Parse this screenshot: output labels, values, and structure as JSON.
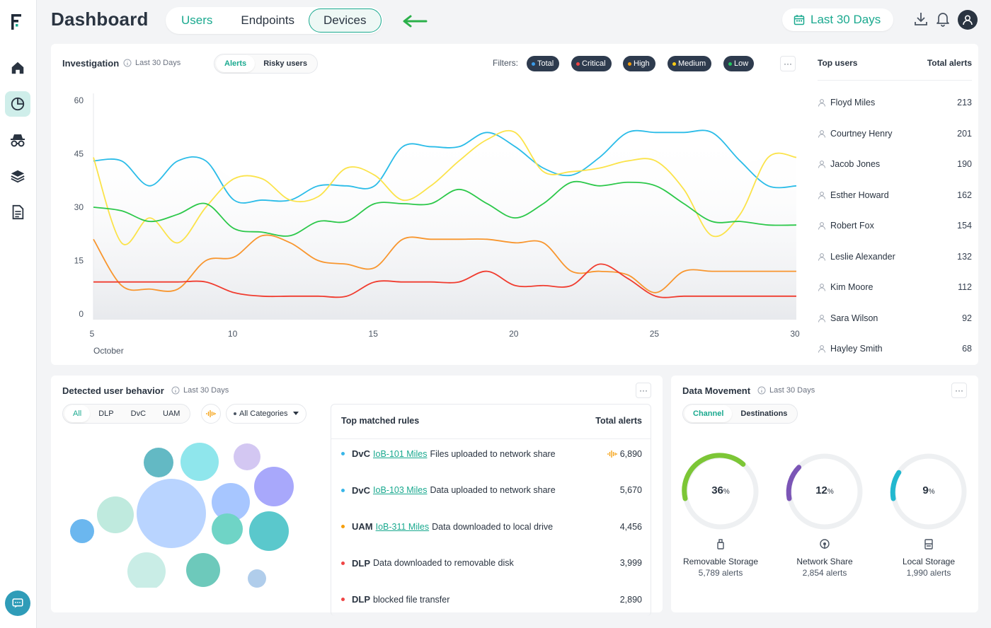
{
  "app": {
    "title": "Dashboard"
  },
  "header": {
    "tabs": [
      {
        "label": "Users"
      },
      {
        "label": "Endpoints"
      },
      {
        "label": "Devices"
      }
    ],
    "date_range": "Last 30 Days"
  },
  "sidebar": {
    "items": [
      {
        "icon": "home-icon"
      },
      {
        "icon": "pie-chart-icon",
        "active": true
      },
      {
        "icon": "spy-icon"
      },
      {
        "icon": "layers-icon"
      },
      {
        "icon": "document-icon"
      }
    ]
  },
  "investigation": {
    "title": "Investigation",
    "subtitle": "Last 30 Days",
    "tabs": [
      "Alerts",
      "Risky users"
    ],
    "filters_label": "Filters:",
    "filters": [
      {
        "label": "Total",
        "color": "#3b9be8"
      },
      {
        "label": "Critical",
        "color": "#ef4444"
      },
      {
        "label": "High",
        "color": "#f59e0b"
      },
      {
        "label": "Medium",
        "color": "#facc15"
      },
      {
        "label": "Low",
        "color": "#22c55e"
      }
    ],
    "more": "···",
    "x_caption": "October"
  },
  "chart_data": {
    "type": "line",
    "xlim": [
      5,
      30
    ],
    "ylim": [
      0,
      60
    ],
    "x_ticks": [
      5,
      10,
      15,
      20,
      25,
      30
    ],
    "y_ticks": [
      0,
      15,
      30,
      45,
      60
    ],
    "xlabel": "October",
    "series": [
      {
        "color": "#2bbce8",
        "x": [
          5,
          6,
          7,
          8,
          9,
          10,
          11,
          12,
          13,
          14,
          15,
          16,
          17,
          18,
          19,
          20,
          21,
          22,
          23,
          24,
          25,
          26,
          27,
          28,
          29,
          30
        ],
        "y": [
          43,
          43,
          36,
          43,
          43,
          32,
          32,
          32,
          36,
          36,
          36,
          47,
          47,
          47,
          51,
          47,
          41,
          39,
          44,
          51,
          51,
          51,
          51,
          43,
          36,
          36
        ]
      },
      {
        "color": "#fbe34a",
        "x": [
          5,
          6,
          7,
          8,
          9,
          10,
          11,
          12,
          13,
          14,
          15,
          16,
          17,
          18,
          19,
          20,
          21,
          22,
          23,
          24,
          25,
          26,
          27,
          28,
          29,
          30
        ],
        "y": [
          44,
          20,
          27,
          20,
          30,
          38,
          38,
          32,
          33,
          41,
          39,
          32,
          36,
          43,
          49,
          51,
          40,
          40,
          41,
          43,
          43,
          35,
          22,
          28,
          44,
          44
        ]
      },
      {
        "color": "#2cc84a",
        "x": [
          5,
          6,
          7,
          8,
          9,
          10,
          11,
          12,
          13,
          14,
          15,
          16,
          17,
          18,
          19,
          20,
          21,
          22,
          23,
          24,
          25,
          26,
          27,
          28,
          29,
          30
        ],
        "y": [
          30,
          29,
          26,
          28,
          31,
          24,
          23,
          22,
          26,
          26,
          31,
          31,
          31,
          35,
          31,
          27,
          31,
          37,
          36,
          37,
          36,
          31,
          26,
          26,
          25,
          25
        ]
      },
      {
        "color": "#f8962e",
        "x": [
          5,
          6,
          7,
          8,
          9,
          10,
          11,
          12,
          13,
          14,
          15,
          16,
          17,
          18,
          19,
          20,
          21,
          22,
          23,
          24,
          25,
          26,
          27,
          28,
          29,
          30
        ],
        "y": [
          21,
          8,
          7,
          7,
          15,
          16,
          22,
          20,
          15,
          14,
          13,
          21,
          21,
          21,
          21,
          20,
          20,
          12,
          12,
          11,
          6,
          12,
          12,
          12,
          12,
          12
        ]
      },
      {
        "color": "#f03c2f",
        "x": [
          5,
          6,
          7,
          8,
          9,
          10,
          11,
          12,
          13,
          14,
          15,
          16,
          17,
          18,
          19,
          20,
          21,
          22,
          23,
          24,
          25,
          26,
          27,
          28,
          29,
          30
        ],
        "y": [
          9,
          9,
          9,
          9,
          9,
          6,
          5,
          5,
          5,
          5,
          9,
          9,
          9,
          9,
          12,
          8,
          8,
          8,
          14,
          10,
          5,
          5,
          5,
          5,
          5,
          5
        ]
      }
    ]
  },
  "top_users": {
    "title": "Top users",
    "count_header": "Total alerts",
    "rows": [
      {
        "name": "Floyd Miles",
        "count": "213"
      },
      {
        "name": "Courtney Henry",
        "count": "201"
      },
      {
        "name": "Jacob Jones",
        "count": "190"
      },
      {
        "name": "Esther Howard",
        "count": "162"
      },
      {
        "name": "Robert Fox",
        "count": "154"
      },
      {
        "name": "Leslie Alexander",
        "count": "132"
      },
      {
        "name": "Kim Moore",
        "count": "112"
      },
      {
        "name": "Sara Wilson",
        "count": "92"
      },
      {
        "name": "Hayley Smith",
        "count": "68"
      }
    ]
  },
  "behavior": {
    "title": "Detected user behavior",
    "subtitle": "Last 30 Days",
    "tabs": [
      "All",
      "DLP",
      "DvC",
      "UAM"
    ],
    "category_select": "All Categories",
    "more": "···",
    "bubble_colors": [
      "#b9d4ff",
      "#8fe6ec",
      "#63b9c4",
      "#a7c6ff",
      "#d3c7f2",
      "#a8a8fb",
      "#6fd4c6",
      "#5ac8cc",
      "#bfeade",
      "#6dc9bb",
      "#6bb7ef",
      "#c9ede6",
      "#b0cdeb"
    ],
    "rules": {
      "title": "Top matched rules",
      "count_header": "Total alerts",
      "rows": [
        {
          "category": "DvC",
          "link": "IoB-101 Miles",
          "text": "Files uploaded to network share",
          "value": "6,890",
          "dot": "#38b6e8",
          "trend_icon": true
        },
        {
          "category": "DvC",
          "link": "IoB-103 Miles",
          "text": "Data uploaded to network share",
          "value": "5,670",
          "dot": "#38b6e8"
        },
        {
          "category": "UAM",
          "link": "IoB-311 Miles",
          "text": "Data downloaded to local drive",
          "value": "4,456",
          "dot": "#f59e0b"
        },
        {
          "category": "DLP",
          "link": "",
          "text": "Data downloaded to removable disk",
          "value": "3,999",
          "dot": "#ef4444"
        },
        {
          "category": "DLP",
          "link": "",
          "text": "blocked file transfer",
          "value": "2,890",
          "dot": "#ef4444"
        }
      ]
    }
  },
  "data_movement": {
    "title": "Data Movement",
    "subtitle": "Last 30 Days",
    "tabs": [
      "Channel",
      "Destinations"
    ],
    "more": "···",
    "gauges": [
      {
        "percent_value": "36",
        "percent_sign": "%",
        "fraction": 0.36,
        "label": "Removable Storage",
        "sub": "5,789 alerts",
        "color": "#7cc636",
        "icon": "usb-icon"
      },
      {
        "percent_value": "12",
        "percent_sign": "%",
        "fraction": 0.12,
        "label": "Network Share",
        "sub": "2,854 alerts",
        "color": "#7b55b6",
        "icon": "network-share-icon"
      },
      {
        "percent_value": "9",
        "percent_sign": "%",
        "fraction": 0.09,
        "label": "Local Storage",
        "sub": "1,990 alerts",
        "color": "#22b8cf",
        "icon": "hard-drive-icon"
      }
    ]
  }
}
